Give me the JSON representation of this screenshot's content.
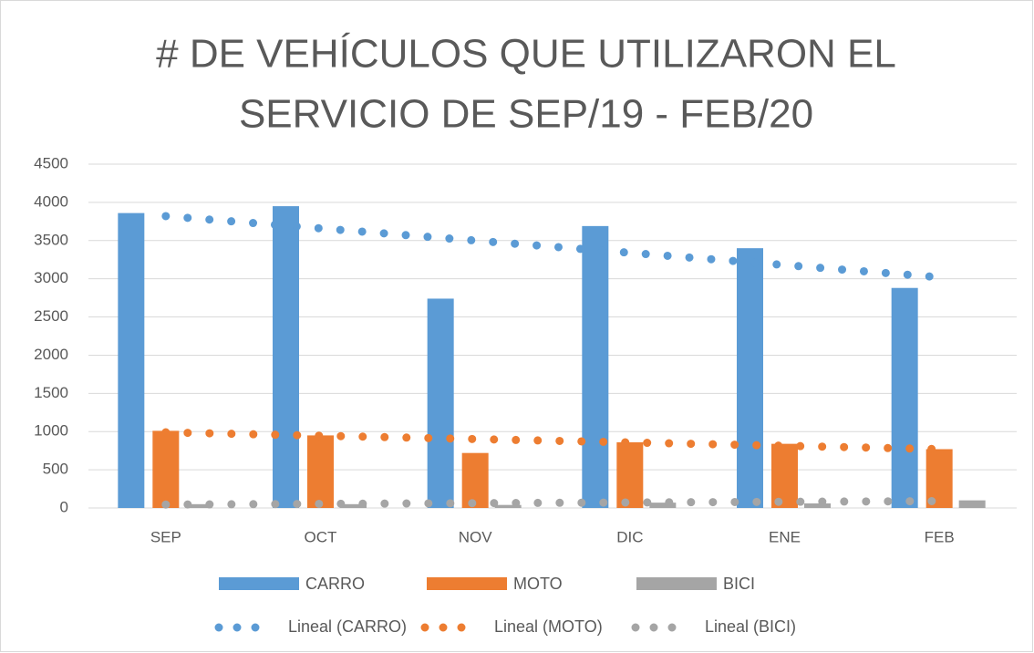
{
  "chart_data": {
    "type": "bar",
    "title": [
      "# DE VEHÍCULOS QUE UTILIZARON EL",
      "SERVICIO DE SEP/19 - FEB/20"
    ],
    "categories": [
      "SEP",
      "OCT",
      "NOV",
      "DIC",
      "ENE",
      "FEB"
    ],
    "series": [
      {
        "name": "CARRO",
        "color": "#5b9bd5",
        "values": [
          3860,
          3950,
          2740,
          3690,
          3400,
          2880
        ]
      },
      {
        "name": "MOTO",
        "color": "#ed7d31",
        "values": [
          1010,
          950,
          720,
          860,
          840,
          770
        ]
      },
      {
        "name": "BICI",
        "color": "#a5a5a5",
        "values": [
          50,
          50,
          40,
          70,
          60,
          100
        ]
      }
    ],
    "trendlines": [
      {
        "name": "Lineal (CARRO)",
        "color": "#5b9bd5",
        "values": [
          3820,
          3660,
          3500,
          3340,
          3180,
          3020
        ]
      },
      {
        "name": "Lineal (MOTO)",
        "color": "#ed7d31",
        "values": [
          990,
          946,
          902,
          858,
          814,
          770
        ]
      },
      {
        "name": "Lineal (BICI)",
        "color": "#a5a5a5",
        "values": [
          45,
          54,
          63,
          72,
          81,
          90
        ]
      }
    ],
    "ylim": [
      0,
      4500
    ],
    "yticks": [
      0,
      500,
      1000,
      1500,
      2000,
      2500,
      3000,
      3500,
      4000,
      4500
    ],
    "grid": true
  }
}
